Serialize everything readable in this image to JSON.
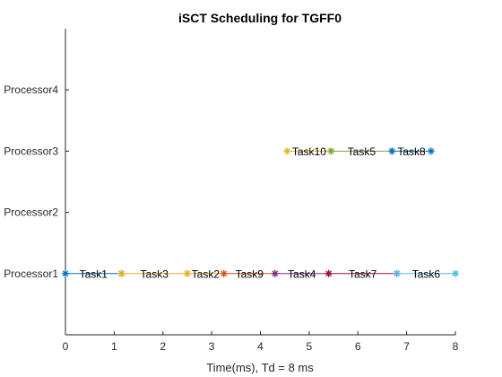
{
  "chart_data": {
    "type": "gantt",
    "title": "iSCT Scheduling for TGFF0",
    "xlabel": "Time(ms), Td = 8 ms",
    "ylabel": "",
    "xlim": [
      0,
      8
    ],
    "xticks": [
      "0",
      "1",
      "2",
      "3",
      "4",
      "5",
      "6",
      "7",
      "8"
    ],
    "processors": [
      "Processor1",
      "Processor2",
      "Processor3",
      "Processor4"
    ],
    "grid": false,
    "legend": "none",
    "tasks": [
      {
        "name": "Task1",
        "processor": "Processor1",
        "start": 0.0,
        "end": 1.15,
        "color": "#0072BD"
      },
      {
        "name": "Task3",
        "processor": "Processor1",
        "start": 1.15,
        "end": 2.5,
        "color": "#EDB120"
      },
      {
        "name": "Task2",
        "processor": "Processor1",
        "start": 2.5,
        "end": 3.25,
        "color": "#EDB120"
      },
      {
        "name": "Task9",
        "processor": "Processor1",
        "start": 3.25,
        "end": 4.3,
        "color": "#D95319"
      },
      {
        "name": "Task4",
        "processor": "Processor1",
        "start": 4.3,
        "end": 5.4,
        "color": "#7E2F8E"
      },
      {
        "name": "Task7",
        "processor": "Processor1",
        "start": 5.4,
        "end": 6.8,
        "color": "#A2142F"
      },
      {
        "name": "Task6",
        "processor": "Processor1",
        "start": 6.8,
        "end": 8.0,
        "color": "#4DBEEE"
      },
      {
        "name": "Task10",
        "processor": "Processor3",
        "start": 4.55,
        "end": 5.45,
        "color": "#EDB120"
      },
      {
        "name": "Task5",
        "processor": "Processor3",
        "start": 5.45,
        "end": 6.7,
        "color": "#77AC30"
      },
      {
        "name": "Task8",
        "processor": "Processor3",
        "start": 6.7,
        "end": 7.5,
        "color": "#0072BD"
      }
    ]
  }
}
